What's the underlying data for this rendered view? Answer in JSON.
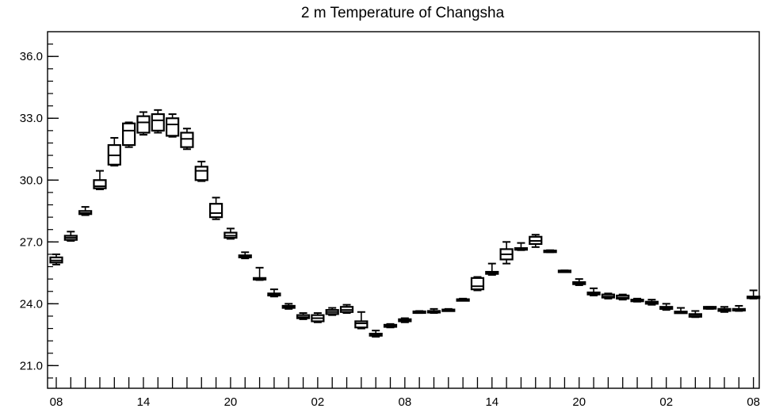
{
  "chart_data": {
    "type": "box",
    "title": "2 m Temperature of Changsha",
    "xlabel": "",
    "ylabel": "",
    "ylim": [
      19.9,
      37.2
    ],
    "y_ticks": [
      21.0,
      24.0,
      27.0,
      30.0,
      33.0,
      36.0
    ],
    "y_tick_labels": [
      "21.0",
      "24.0",
      "27.0",
      "30.0",
      "33.0",
      "36.0"
    ],
    "y_minor_step": 0.6,
    "x_unit": "hour offset",
    "xlim": [
      -0.6,
      48.4
    ],
    "x_ticks": [
      0,
      6,
      12,
      18,
      24,
      30,
      36,
      42,
      48
    ],
    "x_tick_labels": [
      "08",
      "14",
      "20",
      "02",
      "08",
      "14",
      "20",
      "02",
      "08"
    ],
    "grid": false,
    "series": [
      {
        "boxes": [
          {
            "x": 0,
            "min": 25.9,
            "q1": 26.0,
            "median": 26.1,
            "q3": 26.25,
            "max": 26.4
          },
          {
            "x": 1,
            "min": 27.05,
            "q1": 27.1,
            "median": 27.2,
            "q3": 27.3,
            "max": 27.5
          },
          {
            "x": 2,
            "min": 28.3,
            "q1": 28.35,
            "median": 28.4,
            "q3": 28.5,
            "max": 28.7
          },
          {
            "x": 3,
            "min": 29.55,
            "q1": 29.6,
            "median": 29.7,
            "q3": 30.0,
            "max": 30.45
          },
          {
            "x": 4,
            "min": 30.7,
            "q1": 30.75,
            "median": 31.2,
            "q3": 31.7,
            "max": 32.05
          },
          {
            "x": 5,
            "min": 31.6,
            "q1": 31.7,
            "median": 32.4,
            "q3": 32.75,
            "max": 32.8
          },
          {
            "x": 6,
            "min": 32.2,
            "q1": 32.3,
            "median": 32.8,
            "q3": 33.1,
            "max": 33.3
          },
          {
            "x": 7,
            "min": 32.3,
            "q1": 32.4,
            "median": 32.9,
            "q3": 33.2,
            "max": 33.4
          },
          {
            "x": 8,
            "min": 32.1,
            "q1": 32.15,
            "median": 32.7,
            "q3": 33.0,
            "max": 33.2
          },
          {
            "x": 9,
            "min": 31.5,
            "q1": 31.6,
            "median": 32.0,
            "q3": 32.3,
            "max": 32.5
          },
          {
            "x": 10,
            "min": 29.95,
            "q1": 30.0,
            "median": 30.45,
            "q3": 30.65,
            "max": 30.9
          },
          {
            "x": 11,
            "min": 28.1,
            "q1": 28.2,
            "median": 28.4,
            "q3": 28.85,
            "max": 29.15
          },
          {
            "x": 12,
            "min": 27.15,
            "q1": 27.2,
            "median": 27.3,
            "q3": 27.45,
            "max": 27.65
          },
          {
            "x": 13,
            "min": 26.2,
            "q1": 26.25,
            "median": 26.3,
            "q3": 26.35,
            "max": 26.5
          },
          {
            "x": 14,
            "min": 25.15,
            "q1": 25.2,
            "median": 25.2,
            "q3": 25.25,
            "max": 25.75
          },
          {
            "x": 15,
            "min": 24.35,
            "q1": 24.4,
            "median": 24.45,
            "q3": 24.5,
            "max": 24.7
          },
          {
            "x": 16,
            "min": 23.75,
            "q1": 23.8,
            "median": 23.85,
            "q3": 23.9,
            "max": 24.0
          },
          {
            "x": 17,
            "min": 23.25,
            "q1": 23.3,
            "median": 23.35,
            "q3": 23.45,
            "max": 23.55
          },
          {
            "x": 18,
            "min": 23.1,
            "q1": 23.15,
            "median": 23.3,
            "q3": 23.45,
            "max": 23.55
          },
          {
            "x": 19,
            "min": 23.45,
            "q1": 23.5,
            "median": 23.6,
            "q3": 23.7,
            "max": 23.8
          },
          {
            "x": 20,
            "min": 23.55,
            "q1": 23.6,
            "median": 23.7,
            "q3": 23.85,
            "max": 23.95
          },
          {
            "x": 21,
            "min": 22.8,
            "q1": 22.85,
            "median": 23.05,
            "q3": 23.15,
            "max": 23.6
          },
          {
            "x": 22,
            "min": 22.4,
            "q1": 22.45,
            "median": 22.5,
            "q3": 22.55,
            "max": 22.7
          },
          {
            "x": 23,
            "min": 22.85,
            "q1": 22.88,
            "median": 22.92,
            "q3": 22.98,
            "max": 23.02
          },
          {
            "x": 24,
            "min": 23.1,
            "q1": 23.15,
            "median": 23.2,
            "q3": 23.25,
            "max": 23.3
          },
          {
            "x": 25,
            "min": 23.55,
            "q1": 23.58,
            "median": 23.6,
            "q3": 23.63,
            "max": 23.65
          },
          {
            "x": 26,
            "min": 23.55,
            "q1": 23.58,
            "median": 23.6,
            "q3": 23.65,
            "max": 23.75
          },
          {
            "x": 27,
            "min": 23.65,
            "q1": 23.67,
            "median": 23.7,
            "q3": 23.72,
            "max": 23.75
          },
          {
            "x": 28,
            "min": 24.15,
            "q1": 24.17,
            "median": 24.2,
            "q3": 24.22,
            "max": 24.25
          },
          {
            "x": 29,
            "min": 24.65,
            "q1": 24.7,
            "median": 24.85,
            "q3": 25.25,
            "max": 25.3
          },
          {
            "x": 30,
            "min": 25.4,
            "q1": 25.45,
            "median": 25.5,
            "q3": 25.55,
            "max": 25.95
          },
          {
            "x": 31,
            "min": 25.95,
            "q1": 26.15,
            "median": 26.4,
            "q3": 26.65,
            "max": 27.0
          },
          {
            "x": 32,
            "min": 26.6,
            "q1": 26.62,
            "median": 26.65,
            "q3": 26.7,
            "max": 26.95
          },
          {
            "x": 33,
            "min": 26.75,
            "q1": 26.9,
            "median": 27.05,
            "q3": 27.25,
            "max": 27.35
          },
          {
            "x": 34,
            "min": 26.5,
            "q1": 26.52,
            "median": 26.55,
            "q3": 26.58,
            "max": 26.6
          },
          {
            "x": 35,
            "min": 25.58,
            "q1": 25.59,
            "median": 25.6,
            "q3": 25.61,
            "max": 25.62
          },
          {
            "x": 36,
            "min": 24.9,
            "q1": 24.95,
            "median": 25.0,
            "q3": 25.05,
            "max": 25.2
          },
          {
            "x": 37,
            "min": 24.4,
            "q1": 24.45,
            "median": 24.5,
            "q3": 24.55,
            "max": 24.75
          },
          {
            "x": 38,
            "min": 24.25,
            "q1": 24.3,
            "median": 24.35,
            "q3": 24.45,
            "max": 24.5
          },
          {
            "x": 39,
            "min": 24.2,
            "q1": 24.25,
            "median": 24.3,
            "q3": 24.4,
            "max": 24.45
          },
          {
            "x": 40,
            "min": 24.1,
            "q1": 24.12,
            "median": 24.15,
            "q3": 24.2,
            "max": 24.25
          },
          {
            "x": 41,
            "min": 23.95,
            "q1": 24.0,
            "median": 24.05,
            "q3": 24.1,
            "max": 24.2
          },
          {
            "x": 42,
            "min": 23.7,
            "q1": 23.75,
            "median": 23.8,
            "q3": 23.85,
            "max": 24.0
          },
          {
            "x": 43,
            "min": 23.55,
            "q1": 23.57,
            "median": 23.6,
            "q3": 23.62,
            "max": 23.8
          },
          {
            "x": 44,
            "min": 23.35,
            "q1": 23.37,
            "median": 23.45,
            "q3": 23.5,
            "max": 23.65
          },
          {
            "x": 45,
            "min": 23.75,
            "q1": 23.76,
            "median": 23.78,
            "q3": 23.85,
            "max": 23.85
          },
          {
            "x": 46,
            "min": 23.6,
            "q1": 23.65,
            "median": 23.7,
            "q3": 23.75,
            "max": 23.85
          },
          {
            "x": 47,
            "min": 23.65,
            "q1": 23.67,
            "median": 23.7,
            "q3": 23.75,
            "max": 23.9
          },
          {
            "x": 48,
            "min": 24.25,
            "q1": 24.27,
            "median": 24.3,
            "q3": 24.35,
            "max": 24.65
          }
        ]
      }
    ]
  }
}
